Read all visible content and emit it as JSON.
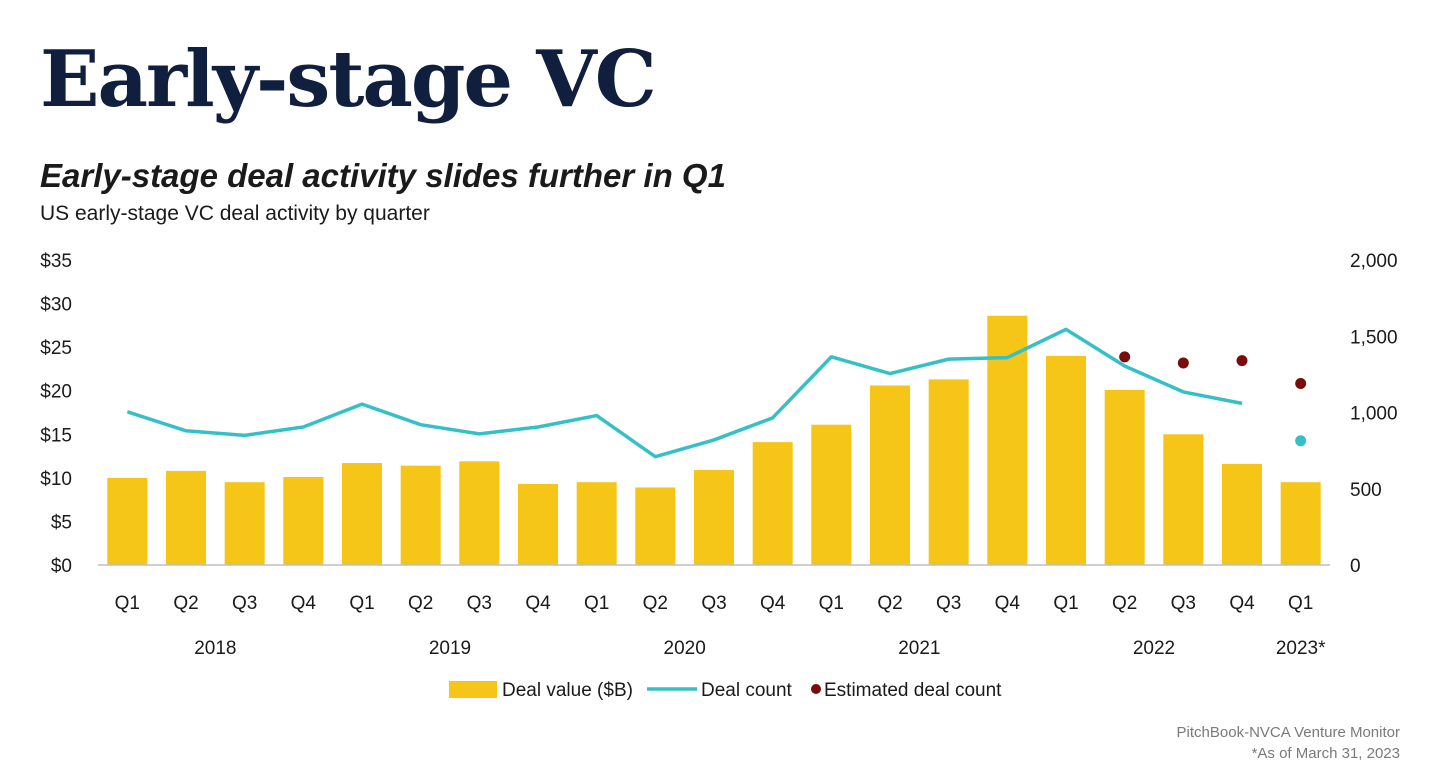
{
  "header": {
    "title": "Early-stage VC",
    "subtitle": "Early-stage deal activity slides further in Q1",
    "description": "US early-stage VC deal activity by quarter"
  },
  "footer": {
    "source": "PitchBook-NVCA Venture Monitor",
    "note": "*As of March 31, 2023"
  },
  "colors": {
    "bar": "#f5c518",
    "line": "#35c0c8",
    "estimate": "#7a0c0c",
    "axis": "#bfbfbf"
  },
  "chart_data": {
    "type": "bar",
    "categories": [
      "Q1",
      "Q2",
      "Q3",
      "Q4",
      "Q1",
      "Q2",
      "Q3",
      "Q4",
      "Q1",
      "Q2",
      "Q3",
      "Q4",
      "Q1",
      "Q2",
      "Q3",
      "Q4",
      "Q1",
      "Q2",
      "Q3",
      "Q4",
      "Q1"
    ],
    "year_labels": [
      {
        "label": "2018",
        "from": 0,
        "to": 3
      },
      {
        "label": "2019",
        "from": 4,
        "to": 7
      },
      {
        "label": "2020",
        "from": 8,
        "to": 11
      },
      {
        "label": "2021",
        "from": 12,
        "to": 15
      },
      {
        "label": "2022",
        "from": 16,
        "to": 19
      },
      {
        "label": "2023*",
        "from": 20,
        "to": 20
      }
    ],
    "left_axis": {
      "ylim": [
        0,
        35
      ],
      "ticks": [
        0,
        5,
        10,
        15,
        20,
        25,
        30,
        35
      ],
      "tick_labels": [
        "$0",
        "$5",
        "$10",
        "$15",
        "$20",
        "$25",
        "$30",
        "$35"
      ]
    },
    "right_axis": {
      "ylim": [
        0,
        2000
      ],
      "ticks": [
        0,
        500,
        1000,
        1500,
        2000
      ],
      "tick_labels": [
        "0",
        "500",
        "1,000",
        "1,500",
        "2,000"
      ]
    },
    "series": [
      {
        "name": "Deal value ($B)",
        "type": "bar",
        "axis": "left",
        "values": [
          10.0,
          10.8,
          9.5,
          10.1,
          11.7,
          11.4,
          11.9,
          9.3,
          9.5,
          8.9,
          10.9,
          14.1,
          16.1,
          20.6,
          21.3,
          28.6,
          24.0,
          20.1,
          15.0,
          11.6,
          9.5
        ]
      },
      {
        "name": "Deal count",
        "type": "line",
        "axis": "right",
        "values": [
          1005,
          880,
          850,
          905,
          1055,
          920,
          860,
          905,
          980,
          710,
          820,
          965,
          1365,
          1255,
          1350,
          1360,
          1545,
          1305,
          1135,
          1060,
          815
        ]
      },
      {
        "name": "Estimated deal count",
        "type": "scatter",
        "axis": "right",
        "points": [
          {
            "index": 17,
            "value": 1365
          },
          {
            "index": 18,
            "value": 1325
          },
          {
            "index": 19,
            "value": 1340
          },
          {
            "index": 20,
            "value": 1190
          }
        ]
      }
    ],
    "legend_position": "bottom",
    "grid": false
  }
}
